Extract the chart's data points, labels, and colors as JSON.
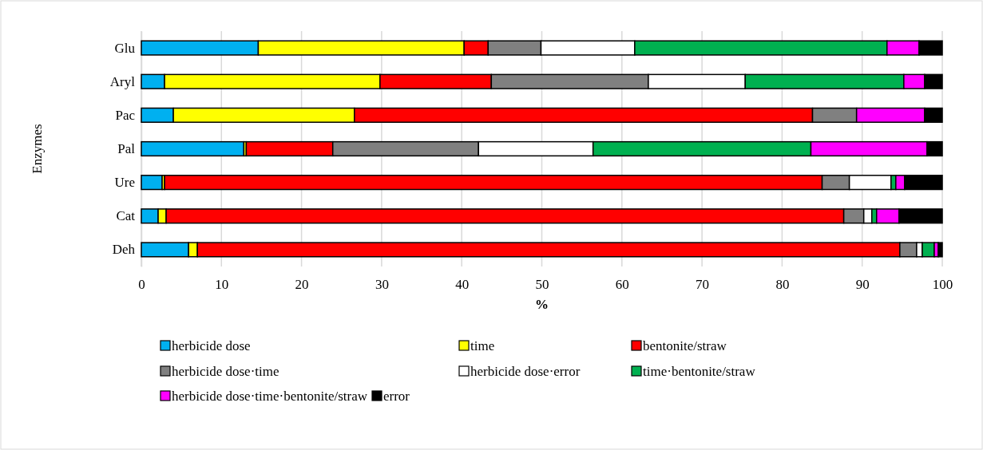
{
  "chart_data": {
    "type": "bar",
    "orientation": "horizontal",
    "stacked": true,
    "xlabel": "%",
    "ylabel": "Enzymes",
    "categories": [
      "Glu",
      "Aryl",
      "Pac",
      "Pal",
      "Ure",
      "Cat",
      "Deh"
    ],
    "xlim": [
      0,
      100
    ],
    "xticks": [
      0,
      10,
      20,
      30,
      40,
      50,
      60,
      70,
      80,
      90,
      100
    ],
    "grid": "x",
    "legend": "bottom",
    "series": [
      {
        "name": "herbicide dose",
        "color": "#00b0f0",
        "values": [
          14.6,
          2.9,
          4.0,
          12.8,
          2.6,
          2.1,
          5.9
        ]
      },
      {
        "name": "time",
        "color": "#ffff00",
        "values": [
          25.7,
          26.9,
          22.6,
          0.3,
          0.3,
          1.0,
          1.1
        ]
      },
      {
        "name": "bentonite/straw",
        "color": "#ff0000",
        "values": [
          3.0,
          13.9,
          57.2,
          10.8,
          82.1,
          84.6,
          87.7
        ]
      },
      {
        "name": "herbicide dose·time",
        "color": "#808080",
        "values": [
          6.6,
          19.6,
          5.5,
          18.2,
          3.4,
          2.5,
          2.1
        ]
      },
      {
        "name": "herbicide dose·error",
        "color": "#ffffff",
        "values": [
          11.7,
          12.1,
          0,
          14.3,
          5.2,
          1.0,
          0.7
        ]
      },
      {
        "name": "time·bentonite/straw",
        "color": "#00b050",
        "values": [
          31.5,
          19.8,
          0,
          27.2,
          0.6,
          0.6,
          1.5
        ]
      },
      {
        "name": "herbicide dose·time·bentonite/straw",
        "color": "#ff00ff",
        "values": [
          4.0,
          2.6,
          8.5,
          14.5,
          1.1,
          2.8,
          0.5
        ]
      },
      {
        "name": "error",
        "color": "#000000",
        "values": [
          2.9,
          2.2,
          2.2,
          1.9,
          4.7,
          5.4,
          0.5
        ]
      }
    ]
  }
}
